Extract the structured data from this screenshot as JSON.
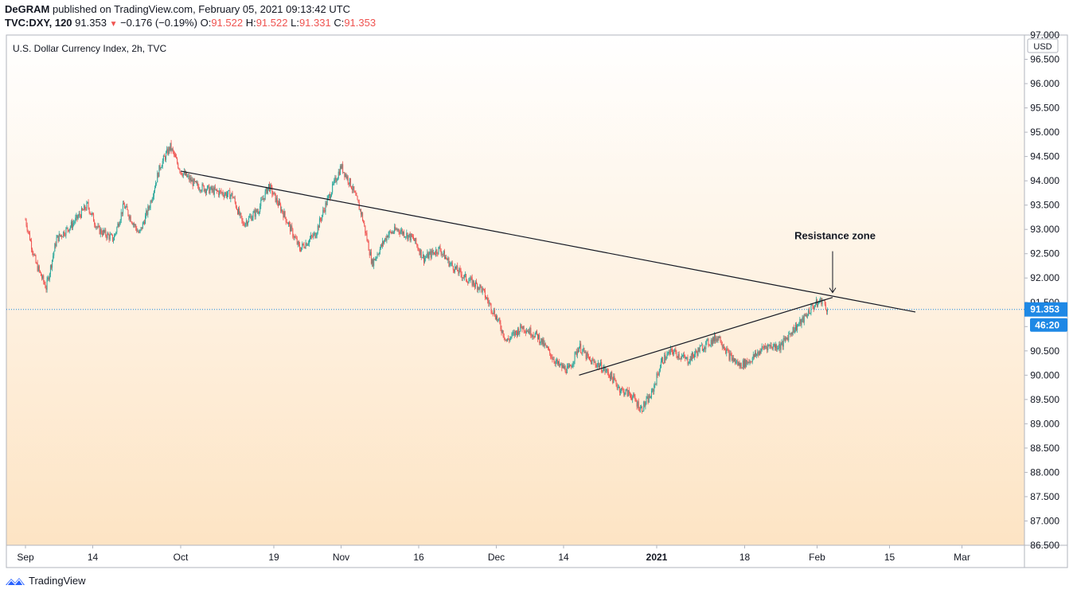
{
  "header": {
    "author": "DeGRAM",
    "published_text": "published on TradingView.com, February 05, 2021 09:13:42 UTC",
    "symbol": "TVC:DXY, 120",
    "last": "91.353",
    "change": "−0.176 (−0.19%)",
    "o_label": "O:",
    "o_value": "91.522",
    "h_label": "H:",
    "h_value": "91.522",
    "l_label": "L:",
    "l_value": "91.331",
    "c_label": "C:",
    "c_value": "91.353"
  },
  "footer": {
    "brand": "TradingView"
  },
  "colors": {
    "up": "#26a69a",
    "down": "#ef5350",
    "accent": "#2962ff",
    "price_label": "#1e88e5",
    "bg_top": "#ffffff",
    "bg_bottom": "#fde4c4"
  },
  "chart_data": {
    "type": "candlestick",
    "title": "U.S. Dollar Currency Index, 2h, TVC",
    "currency_label": "USD",
    "ylim": [
      86.5,
      97.0
    ],
    "y_ticks": [
      "97.000",
      "96.500",
      "96.000",
      "95.500",
      "95.000",
      "94.500",
      "94.000",
      "93.500",
      "93.000",
      "92.500",
      "92.000",
      "91.500",
      "91.000",
      "90.500",
      "90.000",
      "89.500",
      "89.000",
      "88.500",
      "88.000",
      "87.500",
      "87.000",
      "86.500"
    ],
    "x_ticks": [
      {
        "label": "Sep",
        "day": 0
      },
      {
        "label": "14",
        "day": 13
      },
      {
        "label": "Oct",
        "day": 30
      },
      {
        "label": "19",
        "day": 48
      },
      {
        "label": "Nov",
        "day": 61
      },
      {
        "label": "16",
        "day": 76
      },
      {
        "label": "Dec",
        "day": 91
      },
      {
        "label": "14",
        "day": 104
      },
      {
        "label": "2021",
        "day": 122,
        "bold": true
      },
      {
        "label": "18",
        "day": 139
      },
      {
        "label": "Feb",
        "day": 153
      },
      {
        "label": "15",
        "day": 167
      },
      {
        "label": "Mar",
        "day": 181
      }
    ],
    "price_path": [
      {
        "day": 0,
        "price": 93.2
      },
      {
        "day": 2,
        "price": 92.3
      },
      {
        "day": 4,
        "price": 91.8
      },
      {
        "day": 6,
        "price": 92.8
      },
      {
        "day": 9,
        "price": 93.1
      },
      {
        "day": 12,
        "price": 93.5
      },
      {
        "day": 14,
        "price": 93.0
      },
      {
        "day": 17,
        "price": 92.8
      },
      {
        "day": 19,
        "price": 93.5
      },
      {
        "day": 22,
        "price": 92.9
      },
      {
        "day": 24,
        "price": 93.5
      },
      {
        "day": 26,
        "price": 94.3
      },
      {
        "day": 28,
        "price": 94.7
      },
      {
        "day": 30,
        "price": 94.2
      },
      {
        "day": 33,
        "price": 93.9
      },
      {
        "day": 36,
        "price": 93.8
      },
      {
        "day": 40,
        "price": 93.7
      },
      {
        "day": 42,
        "price": 93.1
      },
      {
        "day": 45,
        "price": 93.4
      },
      {
        "day": 47,
        "price": 93.9
      },
      {
        "day": 50,
        "price": 93.3
      },
      {
        "day": 53,
        "price": 92.6
      },
      {
        "day": 56,
        "price": 92.9
      },
      {
        "day": 58,
        "price": 93.5
      },
      {
        "day": 61,
        "price": 94.3
      },
      {
        "day": 63,
        "price": 93.9
      },
      {
        "day": 65,
        "price": 93.3
      },
      {
        "day": 67,
        "price": 92.3
      },
      {
        "day": 70,
        "price": 92.9
      },
      {
        "day": 72,
        "price": 93.0
      },
      {
        "day": 75,
        "price": 92.8
      },
      {
        "day": 77,
        "price": 92.4
      },
      {
        "day": 80,
        "price": 92.6
      },
      {
        "day": 82,
        "price": 92.3
      },
      {
        "day": 85,
        "price": 92.0
      },
      {
        "day": 88,
        "price": 91.8
      },
      {
        "day": 91,
        "price": 91.2
      },
      {
        "day": 93,
        "price": 90.7
      },
      {
        "day": 96,
        "price": 91.0
      },
      {
        "day": 99,
        "price": 90.8
      },
      {
        "day": 101,
        "price": 90.5
      },
      {
        "day": 103,
        "price": 90.2
      },
      {
        "day": 105,
        "price": 90.1
      },
      {
        "day": 107,
        "price": 90.6
      },
      {
        "day": 109,
        "price": 90.3
      },
      {
        "day": 111,
        "price": 90.2
      },
      {
        "day": 113,
        "price": 90.0
      },
      {
        "day": 115,
        "price": 89.7
      },
      {
        "day": 117,
        "price": 89.6
      },
      {
        "day": 119,
        "price": 89.3
      },
      {
        "day": 121,
        "price": 89.6
      },
      {
        "day": 123,
        "price": 90.3
      },
      {
        "day": 125,
        "price": 90.5
      },
      {
        "day": 128,
        "price": 90.3
      },
      {
        "day": 131,
        "price": 90.6
      },
      {
        "day": 134,
        "price": 90.8
      },
      {
        "day": 136,
        "price": 90.4
      },
      {
        "day": 138,
        "price": 90.2
      },
      {
        "day": 140,
        "price": 90.3
      },
      {
        "day": 143,
        "price": 90.6
      },
      {
        "day": 146,
        "price": 90.6
      },
      {
        "day": 148,
        "price": 90.9
      },
      {
        "day": 150,
        "price": 91.1
      },
      {
        "day": 152,
        "price": 91.4
      },
      {
        "day": 154,
        "price": 91.55
      },
      {
        "day": 155,
        "price": 91.353
      }
    ],
    "current_price": "91.353",
    "countdown": "46:20",
    "trendlines": [
      {
        "name": "descending-resistance",
        "from": {
          "day": 30,
          "price": 94.2
        },
        "to": {
          "day": 172,
          "price": 91.3
        }
      },
      {
        "name": "ascending-support",
        "from": {
          "day": 107,
          "price": 90.0
        },
        "to": {
          "day": 156,
          "price": 91.6
        }
      }
    ],
    "annotation": {
      "text": "Resistance zone",
      "at": {
        "day": 156,
        "price": 91.6
      }
    }
  }
}
